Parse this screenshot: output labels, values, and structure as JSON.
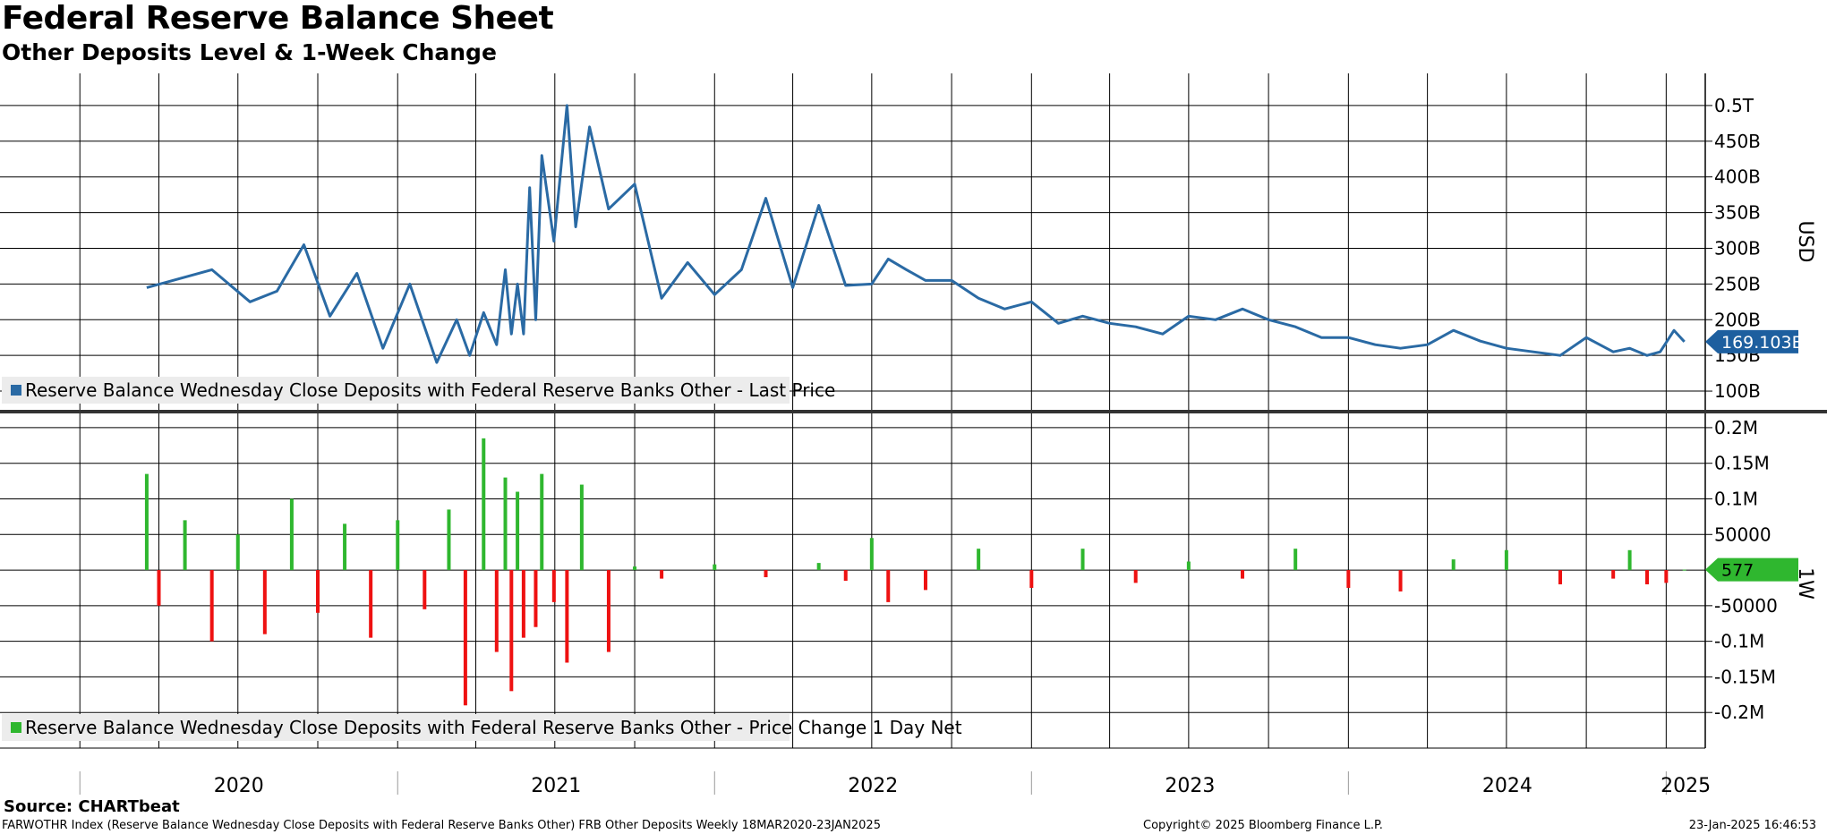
{
  "header": {
    "title": "Federal Reserve Balance Sheet",
    "subtitle": "Other Deposits Level & 1-Week Change"
  },
  "footer": {
    "source": "Source: CHARTbeat",
    "ticker_line": "FARWOTHR Index (Reserve Balance Wednesday Close Deposits with Federal Reserve Banks Other) FRB Other Deposits  Weekly 18MAR2020-23JAN2025",
    "copyright": "Copyright© 2025 Bloomberg Finance L.P.",
    "timestamp": "23-Jan-2025 16:46:53"
  },
  "colors": {
    "line": "#2a6aa4",
    "positive_bar": "#2fb72f",
    "negative_bar": "#ee1111",
    "last_tag_top": "#1d5f9f",
    "last_tag_bottom": "#2fb72f",
    "grid": "#000000"
  },
  "chart_data": [
    {
      "type": "line",
      "legend": "Reserve Balance Wednesday Close Deposits with Federal Reserve Banks Other - Last Price",
      "legend_position": "bottom-left",
      "axis_label": "USD",
      "y_unit": "billions USD",
      "ylim": [
        75,
        545
      ],
      "y_ticks": [
        {
          "value": 100,
          "label": "100B"
        },
        {
          "value": 150,
          "label": "150B"
        },
        {
          "value": 200,
          "label": "200B"
        },
        {
          "value": 250,
          "label": "250B"
        },
        {
          "value": 300,
          "label": "300B"
        },
        {
          "value": 350,
          "label": "350B"
        },
        {
          "value": 400,
          "label": "400B"
        },
        {
          "value": 450,
          "label": "450B"
        },
        {
          "value": 500,
          "label": "0.5T"
        }
      ],
      "last_value_label": "169.103B",
      "last_value": 169.103,
      "x": [
        "2020-03-18",
        "2020-06-01",
        "2020-07-15",
        "2020-08-15",
        "2020-09-15",
        "2020-10-15",
        "2020-11-15",
        "2020-12-15",
        "2021-01-15",
        "2021-02-15",
        "2021-03-10",
        "2021-03-25",
        "2021-04-10",
        "2021-04-25",
        "2021-05-05",
        "2021-05-12",
        "2021-05-19",
        "2021-05-26",
        "2021-06-02",
        "2021-06-09",
        "2021-06-16",
        "2021-06-30",
        "2021-07-15",
        "2021-07-25",
        "2021-08-10",
        "2021-09-01",
        "2021-10-01",
        "2021-11-01",
        "2021-12-01",
        "2022-01-01",
        "2022-02-01",
        "2022-03-01",
        "2022-04-01",
        "2022-05-01",
        "2022-06-01",
        "2022-07-01",
        "2022-07-20",
        "2022-08-10",
        "2022-09-01",
        "2022-10-01",
        "2022-11-01",
        "2022-12-01",
        "2023-01-01",
        "2023-02-01",
        "2023-03-01",
        "2023-04-01",
        "2023-05-01",
        "2023-06-01",
        "2023-07-01",
        "2023-08-01",
        "2023-09-01",
        "2023-10-01",
        "2023-11-01",
        "2023-12-01",
        "2024-01-01",
        "2024-02-01",
        "2024-03-01",
        "2024-04-01",
        "2024-05-01",
        "2024-06-01",
        "2024-07-01",
        "2024-08-01",
        "2024-09-01",
        "2024-10-01",
        "2024-11-01",
        "2024-11-20",
        "2024-12-10",
        "2024-12-25",
        "2025-01-10",
        "2025-01-22"
      ],
      "values": [
        245,
        270,
        225,
        240,
        305,
        205,
        265,
        160,
        250,
        140,
        200,
        150,
        210,
        165,
        270,
        180,
        250,
        180,
        385,
        200,
        430,
        310,
        500,
        330,
        470,
        355,
        390,
        230,
        280,
        235,
        270,
        370,
        245,
        360,
        248,
        250,
        285,
        270,
        255,
        255,
        230,
        215,
        225,
        195,
        205,
        195,
        190,
        180,
        205,
        200,
        215,
        200,
        190,
        175,
        175,
        165,
        160,
        165,
        185,
        170,
        160,
        155,
        150,
        175,
        155,
        160,
        150,
        155,
        185,
        169.103
      ]
    },
    {
      "type": "bar",
      "legend": "Reserve Balance Wednesday Close Deposits with Federal Reserve Banks Other - Price Change 1 Day Net",
      "legend_position": "bottom-left",
      "axis_label": "1W",
      "ylim": [
        -250000,
        220000
      ],
      "y_ticks": [
        {
          "value": 200000,
          "label": "0.2M"
        },
        {
          "value": 150000,
          "label": "0.15M"
        },
        {
          "value": 100000,
          "label": "0.1M"
        },
        {
          "value": 50000,
          "label": "50000"
        },
        {
          "value": 0,
          "label": ""
        },
        {
          "value": -50000,
          "label": "-50000"
        },
        {
          "value": -100000,
          "label": "-0.1M"
        },
        {
          "value": -150000,
          "label": "-0.15M"
        },
        {
          "value": -200000,
          "label": "-0.2M"
        }
      ],
      "last_value_label": "577",
      "last_value": 577,
      "x": [
        "2020-03-18",
        "2020-04-01",
        "2020-05-01",
        "2020-06-01",
        "2020-07-01",
        "2020-08-01",
        "2020-09-01",
        "2020-10-01",
        "2020-11-01",
        "2020-12-01",
        "2021-01-01",
        "2021-02-01",
        "2021-03-01",
        "2021-03-20",
        "2021-04-10",
        "2021-04-25",
        "2021-05-05",
        "2021-05-12",
        "2021-05-19",
        "2021-05-26",
        "2021-06-09",
        "2021-06-16",
        "2021-06-30",
        "2021-07-15",
        "2021-08-01",
        "2021-09-01",
        "2021-10-01",
        "2021-11-01",
        "2022-01-01",
        "2022-03-01",
        "2022-05-01",
        "2022-06-01",
        "2022-07-01",
        "2022-07-20",
        "2022-09-01",
        "2022-11-01",
        "2023-01-01",
        "2023-03-01",
        "2023-05-01",
        "2023-07-01",
        "2023-09-01",
        "2023-11-01",
        "2024-01-01",
        "2024-03-01",
        "2024-05-01",
        "2024-07-01",
        "2024-09-01",
        "2024-11-01",
        "2024-11-20",
        "2024-12-10",
        "2025-01-01",
        "2025-01-22"
      ],
      "values": [
        135000,
        -50000,
        70000,
        -100000,
        50000,
        -90000,
        100000,
        -60000,
        65000,
        -95000,
        70000,
        -55000,
        85000,
        -190000,
        185000,
        -115000,
        130000,
        -170000,
        110000,
        -95000,
        -80000,
        135000,
        -45000,
        -130000,
        120000,
        -115000,
        5000,
        -12000,
        8000,
        -10000,
        10000,
        -15000,
        45000,
        -45000,
        -28000,
        30000,
        -25000,
        30000,
        -18000,
        12000,
        -12000,
        30000,
        -25000,
        -30000,
        15000,
        28000,
        -20000,
        -12000,
        28000,
        -20000,
        -18000,
        577
      ]
    }
  ],
  "x_axis": {
    "year_labels": [
      "2020",
      "2021",
      "2022",
      "2023",
      "2024",
      "2025"
    ]
  }
}
